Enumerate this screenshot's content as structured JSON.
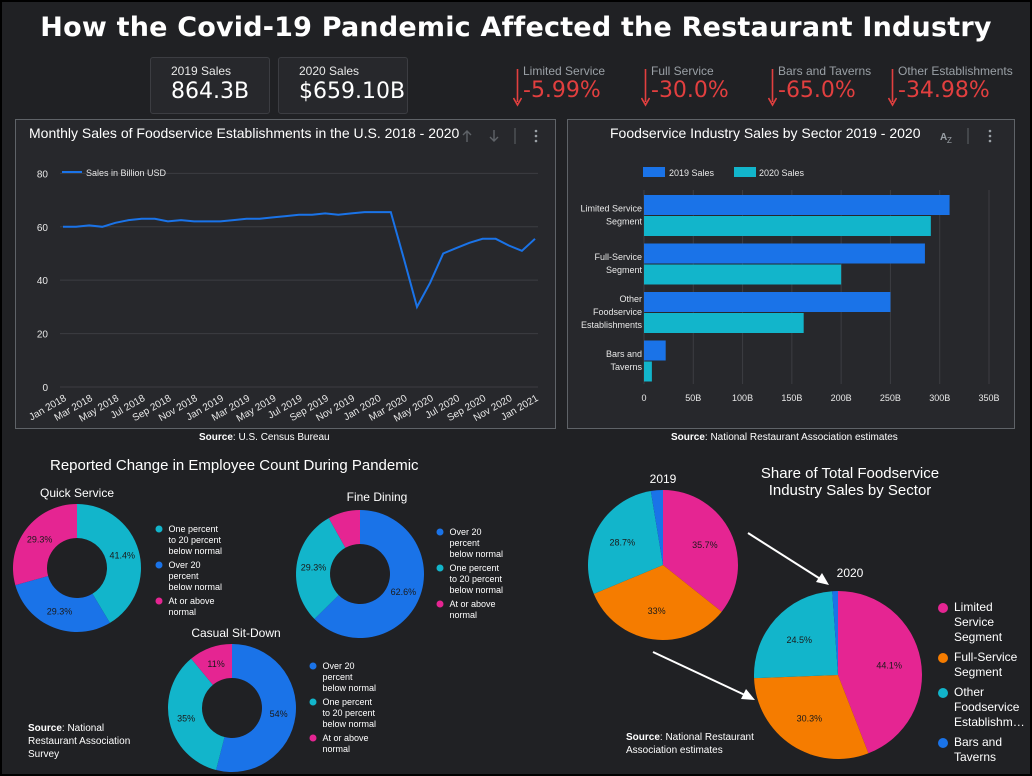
{
  "title": "How the Covid-19 Pandemic Affected the Restaurant Industry",
  "kpis": [
    {
      "label": "2019 Sales",
      "value": "864.3B"
    },
    {
      "label": "2020 Sales",
      "value": "$659.10B"
    }
  ],
  "changes": [
    {
      "label": "Limited Service",
      "value": "-5.99%"
    },
    {
      "label": "Full Service",
      "value": "-30.0%"
    },
    {
      "label": "Bars and Taverns",
      "value": "-65.0%"
    },
    {
      "label": "Other Establishments",
      "value": "-34.98%"
    }
  ],
  "colors": {
    "background": "#202124",
    "panel": "#27282c",
    "blue": "#1a73e8",
    "cyan": "#12b5cb",
    "magenta": "#e52592",
    "orange": "#f57c00",
    "negative": "#e23f3f"
  },
  "line_panel": {
    "title": "Monthly Sales of Foodservice Establishments in the U.S. 2018 - 2020",
    "source_label": "Source",
    "source": ": U.S. Census Bureau"
  },
  "bar_panel": {
    "title": "Foodservice Industry Sales by Sector 2019 - 2020",
    "source_label": "Source",
    "source": ": National Restaurant Association estimates"
  },
  "employee_section": {
    "title": "Reported Change in Employee Count During Pandemic",
    "source_label": "Source",
    "source": ": National Restaurant Association Survey"
  },
  "share_section": {
    "title_line1": "Share of Total Foodservice",
    "title_line2": "Industry Sales by  Sector",
    "source_label": "Source",
    "source": ": National Restaurant Association estimates"
  },
  "chart_data": [
    {
      "type": "line",
      "title": "Monthly Sales of Foodservice Establishments in the U.S. 2018 - 2020",
      "series": [
        {
          "name": "Sales in Billion USD",
          "values": [
            60,
            60,
            60.5,
            60,
            61.5,
            62.5,
            63,
            63,
            62,
            62.5,
            62,
            62,
            62,
            62.5,
            63,
            63,
            63.5,
            64,
            64.5,
            64.5,
            65,
            64.5,
            65,
            65.5,
            65.5,
            65.5,
            48,
            30,
            39,
            50,
            52,
            54,
            55.5,
            55.5,
            53,
            51,
            55.5
          ]
        }
      ],
      "x_tick_labels": [
        "Jan 2018",
        "Mar 2018",
        "May 2018",
        "Jul 2018",
        "Sep 2018",
        "Nov 2018",
        "Jan 2019",
        "Mar 2019",
        "May 2019",
        "Jul 2019",
        "Sep 2019",
        "Nov 2019",
        "Jan 2020",
        "Mar 2020",
        "May 2020",
        "Jul 2020",
        "Sep 2020",
        "Nov 2020",
        "Jan 2021"
      ],
      "y_ticks": [
        0,
        20,
        40,
        60,
        80
      ],
      "ylim": [
        0,
        85
      ],
      "legend": "top-left",
      "grid": true
    },
    {
      "type": "bar",
      "orientation": "horizontal",
      "title": "Foodservice Industry Sales by Sector 2019 - 2020",
      "categories": [
        [
          "Limited Service",
          "Segment"
        ],
        [
          "Full-Service",
          "Segment"
        ],
        [
          "Other",
          "Foodservice",
          "Establishments"
        ],
        [
          "Bars and",
          "Taverns"
        ]
      ],
      "series": [
        {
          "name": "2019 Sales",
          "values": [
            310,
            285,
            250,
            22
          ]
        },
        {
          "name": "2020 Sales",
          "values": [
            291,
            200,
            162,
            8
          ]
        }
      ],
      "x_ticks": [
        "0",
        "50B",
        "100B",
        "150B",
        "200B",
        "250B",
        "300B",
        "350B"
      ],
      "xlim": [
        0,
        350
      ],
      "legend": "top"
    },
    {
      "type": "pie",
      "subtype": "donut",
      "title": "Quick Service",
      "slices": [
        {
          "label": "One percent to 20 percent below normal",
          "value": 41.4
        },
        {
          "label": "Over 20 percent below normal",
          "value": 29.3
        },
        {
          "label": "At or above normal",
          "value": 29.3
        }
      ],
      "value_labels": [
        "41.4%",
        "29.3%",
        "29.3%"
      ],
      "legend": [
        [
          "One percent",
          "to 20 percent",
          "below normal"
        ],
        [
          "Over 20",
          "percent",
          "below normal"
        ],
        [
          "At or above",
          "normal"
        ]
      ]
    },
    {
      "type": "pie",
      "subtype": "donut",
      "title": "Fine Dining",
      "slices": [
        {
          "label": "Over 20 percent below normal",
          "value": 62.6
        },
        {
          "label": "One percent to 20 percent below normal",
          "value": 29.3
        },
        {
          "label": "At or above normal",
          "value": 8.1
        }
      ],
      "value_labels": [
        "62.6%",
        "29.3%",
        ""
      ],
      "legend": [
        [
          "Over 20",
          "percent",
          "below normal"
        ],
        [
          "One percent",
          "to 20 percent",
          "below normal"
        ],
        [
          "At or above",
          "normal"
        ]
      ]
    },
    {
      "type": "pie",
      "subtype": "donut",
      "title": "Casual Sit-Down",
      "slices": [
        {
          "label": "Over 20 percent below normal",
          "value": 54
        },
        {
          "label": "One percent to 20 percent below normal",
          "value": 35
        },
        {
          "label": "At or above normal",
          "value": 11
        }
      ],
      "value_labels": [
        "54%",
        "35%",
        "11%"
      ],
      "legend": [
        [
          "Over 20",
          "percent",
          "below normal"
        ],
        [
          "One percent",
          "to 20 percent",
          "below normal"
        ],
        [
          "At or above",
          "normal"
        ]
      ]
    },
    {
      "type": "pie",
      "title": "2019",
      "slices": [
        {
          "label": "Limited Service Segment",
          "value": 35.7
        },
        {
          "label": "Full-Service Segment",
          "value": 33
        },
        {
          "label": "Other Foodservice Establishments",
          "value": 28.7
        },
        {
          "label": "Bars and Taverns",
          "value": 2.6
        }
      ],
      "value_labels": [
        "35.7%",
        "33%",
        "28.7%",
        ""
      ]
    },
    {
      "type": "pie",
      "title": "2020",
      "slices": [
        {
          "label": "Limited Service Segment",
          "value": 44.1
        },
        {
          "label": "Full-Service Segment",
          "value": 30.3
        },
        {
          "label": "Other Foodservice Establishments",
          "value": 24.5
        },
        {
          "label": "Bars and Taverns",
          "value": 1.1
        }
      ],
      "value_labels": [
        "44.1%",
        "30.3%",
        "24.5%",
        ""
      ],
      "legend": [
        [
          "Limited",
          "Service",
          "Segment"
        ],
        [
          "Full-Service",
          "Segment"
        ],
        [
          "Other",
          "Foodservice",
          "Establishm…"
        ],
        [
          "Bars and",
          "Taverns"
        ]
      ]
    }
  ]
}
